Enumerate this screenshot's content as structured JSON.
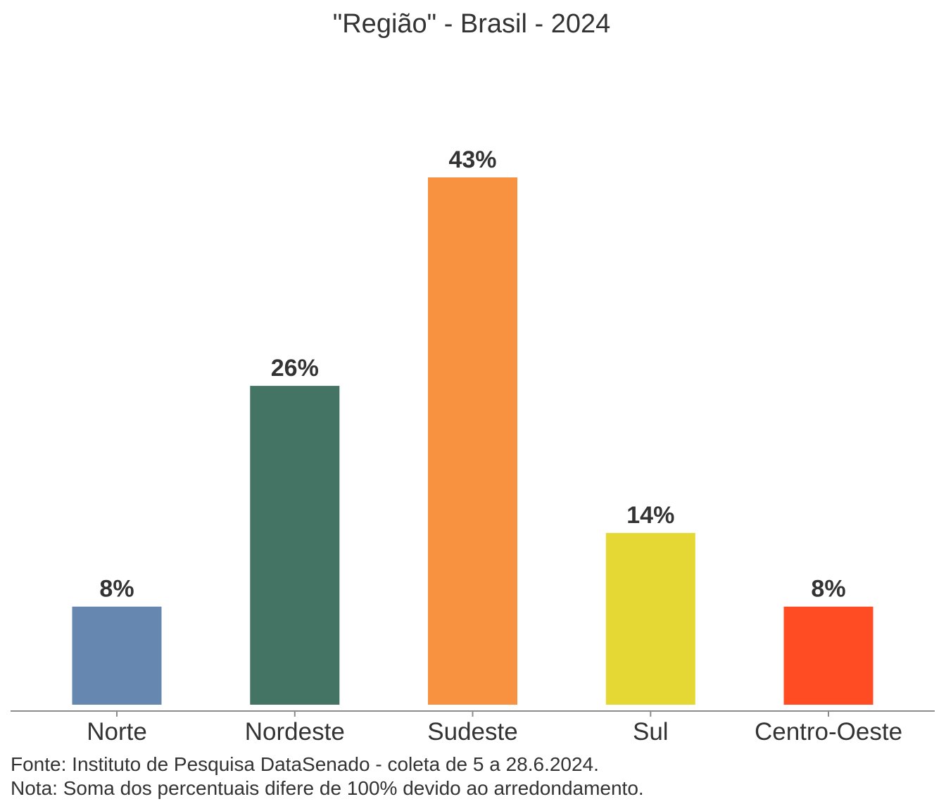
{
  "chart_data": {
    "type": "bar",
    "title": "\"Região\" - Brasil - 2024",
    "xlabel": "",
    "ylabel": "",
    "categories": [
      "Norte",
      "Nordeste",
      "Sudeste",
      "Sul",
      "Centro-Oeste"
    ],
    "values": [
      8,
      26,
      43,
      14,
      8
    ],
    "value_labels": [
      "8%",
      "26%",
      "43%",
      "14%",
      "8%"
    ],
    "colors": [
      "#6688b0",
      "#447564",
      "#f99240",
      "#e5d834",
      "#ff4c22"
    ],
    "ylim": [
      0,
      43
    ],
    "grid": false,
    "legend": "none"
  },
  "captions": {
    "source": "Fonte: Instituto de Pesquisa DataSenado - coleta de 5 a 28.6.2024.",
    "note": "Nota: Soma dos percentuais difere de 100% devido ao arredondamento."
  }
}
